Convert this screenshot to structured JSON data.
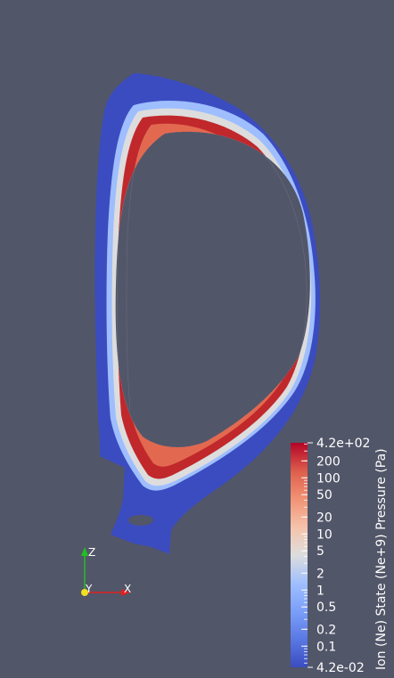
{
  "viewer": {
    "background_color": "#525669"
  },
  "dataset": {
    "field_name": "Ion (Ne) State (Ne+9) Pressure (Pa)",
    "colormap": "Cool to Warm",
    "scale": "log",
    "range_min": 0.042,
    "range_max": 420,
    "colors": {
      "low": "#3b4cc0",
      "mid": "#dddddd",
      "high": "#b40426"
    }
  },
  "colorbar": {
    "title": "Ion (Ne) State (Ne+9) Pressure (Pa)",
    "max_label": "4.2e+02",
    "min_label": "4.2e-02",
    "tick_labels": [
      {
        "value": 200,
        "label": "200"
      },
      {
        "value": 100,
        "label": "100"
      },
      {
        "value": 50,
        "label": "50"
      },
      {
        "value": 20,
        "label": "20"
      },
      {
        "value": 10,
        "label": "10"
      },
      {
        "value": 5,
        "label": "5"
      },
      {
        "value": 2,
        "label": "2"
      },
      {
        "value": 1,
        "label": "1"
      },
      {
        "value": 0.5,
        "label": "0.5"
      },
      {
        "value": 0.2,
        "label": "0.2"
      },
      {
        "value": 0.1,
        "label": "0.1"
      }
    ]
  },
  "orientation_axes": {
    "x_label": "X",
    "y_label": "Y",
    "z_label": "Z",
    "x_color": "#e02020",
    "y_color": "#f0e020",
    "z_color": "#20c020"
  }
}
